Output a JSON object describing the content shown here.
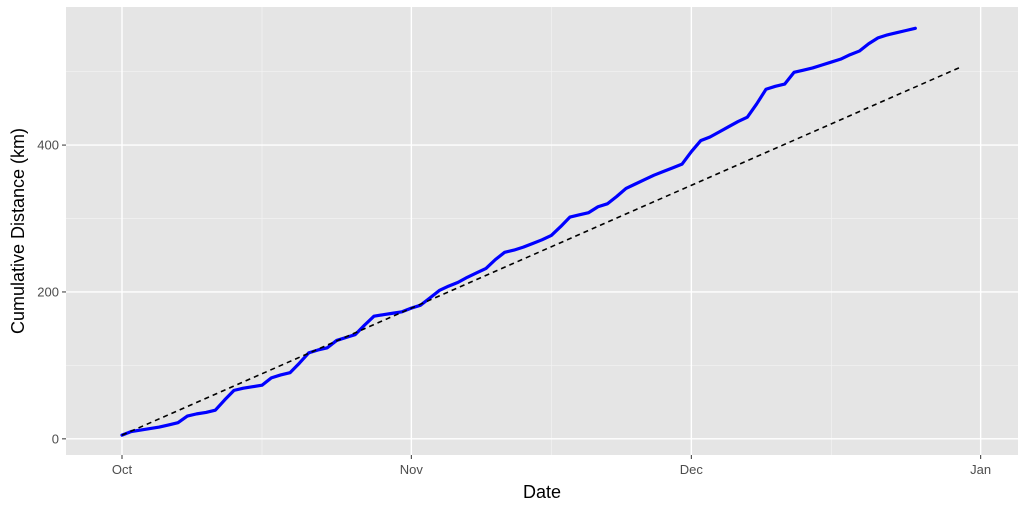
{
  "chart_data": {
    "type": "line",
    "title": "",
    "xlabel": "Date",
    "ylabel": "Cumulative Distance (km)",
    "x_tick_labels": [
      "Oct",
      "Nov",
      "Dec",
      "Jan"
    ],
    "y_tick_labels": [
      "0",
      "200",
      "400"
    ],
    "x_ticks": [
      "2024-10-01",
      "2024-11-01",
      "2024-12-01",
      "2025-01-01"
    ],
    "x_minor_ticks": [
      "2024-10-16",
      "2024-11-16",
      "2024-12-16"
    ],
    "y_ticks": [
      0,
      200,
      400
    ],
    "y_minor_ticks": [
      100,
      300,
      500
    ],
    "xlim": [
      "2024-09-25",
      "2025-01-05"
    ],
    "ylim": [
      -22,
      588
    ],
    "grid": true,
    "series": [
      {
        "color": "#0000ff",
        "style": "solid",
        "points": [
          [
            "2024-10-01",
            5
          ],
          [
            "2024-10-02",
            10
          ],
          [
            "2024-10-03",
            12
          ],
          [
            "2024-10-04",
            14
          ],
          [
            "2024-10-05",
            16
          ],
          [
            "2024-10-06",
            19
          ],
          [
            "2024-10-07",
            22
          ],
          [
            "2024-10-08",
            31
          ],
          [
            "2024-10-09",
            34
          ],
          [
            "2024-10-10",
            36
          ],
          [
            "2024-10-11",
            39
          ],
          [
            "2024-10-12",
            53
          ],
          [
            "2024-10-13",
            66
          ],
          [
            "2024-10-14",
            69
          ],
          [
            "2024-10-15",
            71
          ],
          [
            "2024-10-16",
            73
          ],
          [
            "2024-10-17",
            83
          ],
          [
            "2024-10-18",
            87
          ],
          [
            "2024-10-19",
            90
          ],
          [
            "2024-10-20",
            103
          ],
          [
            "2024-10-21",
            117
          ],
          [
            "2024-10-22",
            121
          ],
          [
            "2024-10-23",
            124
          ],
          [
            "2024-10-24",
            134
          ],
          [
            "2024-10-25",
            138
          ],
          [
            "2024-10-26",
            142
          ],
          [
            "2024-10-27",
            155
          ],
          [
            "2024-10-28",
            167
          ],
          [
            "2024-10-29",
            169
          ],
          [
            "2024-10-30",
            171
          ],
          [
            "2024-10-31",
            173
          ],
          [
            "2024-11-01",
            178
          ],
          [
            "2024-11-02",
            182
          ],
          [
            "2024-11-03",
            192
          ],
          [
            "2024-11-04",
            202
          ],
          [
            "2024-11-05",
            208
          ],
          [
            "2024-11-06",
            213
          ],
          [
            "2024-11-07",
            220
          ],
          [
            "2024-11-08",
            226
          ],
          [
            "2024-11-09",
            232
          ],
          [
            "2024-11-10",
            244
          ],
          [
            "2024-11-11",
            254
          ],
          [
            "2024-11-12",
            257
          ],
          [
            "2024-11-13",
            261
          ],
          [
            "2024-11-14",
            266
          ],
          [
            "2024-11-15",
            271
          ],
          [
            "2024-11-16",
            277
          ],
          [
            "2024-11-17",
            289
          ],
          [
            "2024-11-18",
            302
          ],
          [
            "2024-11-19",
            305
          ],
          [
            "2024-11-20",
            308
          ],
          [
            "2024-11-21",
            316
          ],
          [
            "2024-11-22",
            320
          ],
          [
            "2024-11-23",
            330
          ],
          [
            "2024-11-24",
            341
          ],
          [
            "2024-11-25",
            347
          ],
          [
            "2024-11-26",
            353
          ],
          [
            "2024-11-27",
            359
          ],
          [
            "2024-11-28",
            364
          ],
          [
            "2024-11-29",
            369
          ],
          [
            "2024-11-30",
            374
          ],
          [
            "2024-12-01",
            391
          ],
          [
            "2024-12-02",
            406
          ],
          [
            "2024-12-03",
            411
          ],
          [
            "2024-12-04",
            418
          ],
          [
            "2024-12-05",
            425
          ],
          [
            "2024-12-06",
            432
          ],
          [
            "2024-12-07",
            438
          ],
          [
            "2024-12-08",
            456
          ],
          [
            "2024-12-09",
            476
          ],
          [
            "2024-12-10",
            480
          ],
          [
            "2024-12-11",
            483
          ],
          [
            "2024-12-12",
            499
          ],
          [
            "2024-12-13",
            502
          ],
          [
            "2024-12-14",
            505
          ],
          [
            "2024-12-15",
            509
          ],
          [
            "2024-12-16",
            513
          ],
          [
            "2024-12-17",
            517
          ],
          [
            "2024-12-18",
            523
          ],
          [
            "2024-12-19",
            528
          ],
          [
            "2024-12-20",
            538
          ],
          [
            "2024-12-21",
            546
          ],
          [
            "2024-12-22",
            550
          ],
          [
            "2024-12-23",
            553
          ],
          [
            "2024-12-24",
            556
          ],
          [
            "2024-12-25",
            559
          ]
        ]
      },
      {
        "color": "#000000",
        "style": "dashed",
        "points": [
          [
            "2024-10-01",
            5
          ],
          [
            "2024-12-30",
            507
          ]
        ]
      }
    ]
  }
}
